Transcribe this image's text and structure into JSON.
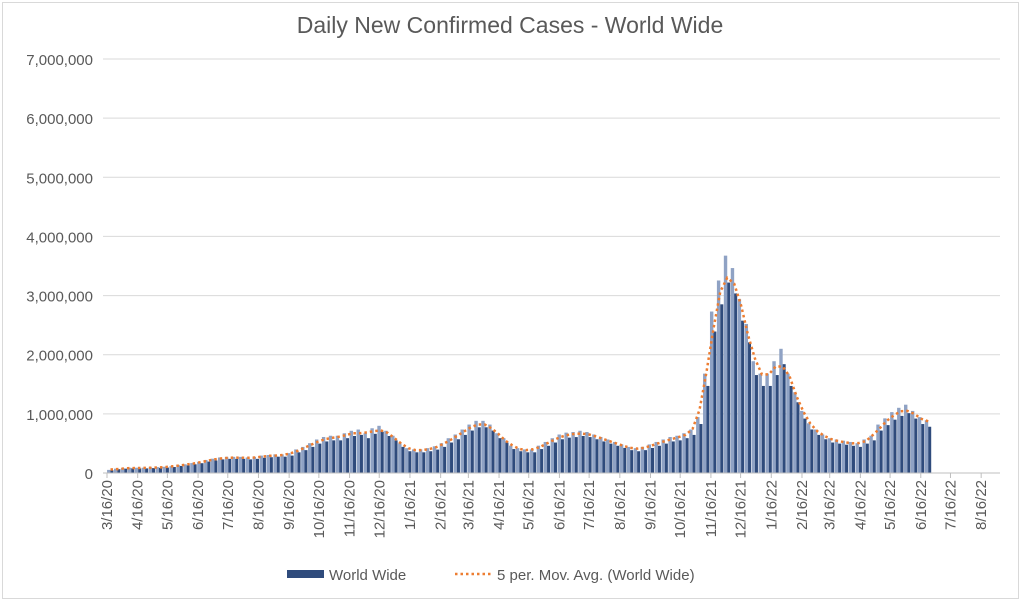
{
  "chart_data": {
    "type": "bar",
    "title": "Daily New Confirmed Cases - World Wide",
    "xlabel": "",
    "ylabel": "",
    "ylim": [
      0,
      7000000
    ],
    "y_ticks": [
      "0",
      "1,000,000",
      "2,000,000",
      "3,000,000",
      "4,000,000",
      "5,000,000",
      "6,000,000",
      "7,000,000"
    ],
    "y_tick_values": [
      0,
      1000000,
      2000000,
      3000000,
      4000000,
      5000000,
      6000000,
      7000000
    ],
    "x_tick_labels": [
      "3/16/20",
      "4/16/20",
      "5/16/20",
      "6/16/20",
      "7/16/20",
      "8/16/20",
      "9/16/20",
      "10/16/20",
      "11/16/20",
      "12/16/20",
      "1/16/21",
      "2/16/21",
      "3/16/21",
      "4/16/21",
      "5/16/21",
      "6/16/21",
      "7/16/21",
      "8/16/21",
      "9/16/21",
      "10/16/21",
      "11/16/21",
      "12/16/21",
      "1/16/22",
      "2/16/22",
      "3/16/22",
      "4/16/22",
      "5/16/22",
      "6/16/22",
      "7/16/22",
      "8/16/22"
    ],
    "x_tick_day_offsets": [
      0,
      31,
      61,
      92,
      122,
      153,
      184,
      214,
      245,
      275,
      306,
      337,
      365,
      396,
      426,
      457,
      487,
      518,
      549,
      579,
      610,
      640,
      671,
      702,
      730,
      761,
      791,
      822,
      852,
      883
    ],
    "grid": true,
    "legend_position": "bottom",
    "x_start": "3/16/20",
    "x_resolution": "weekly (approximate)",
    "series": [
      {
        "name": "World Wide",
        "type": "bar",
        "color": "#2f4b7c",
        "values": [
          50000,
          70000,
          80000,
          85000,
          85000,
          85000,
          90000,
          95000,
          100000,
          110000,
          130000,
          140000,
          160000,
          180000,
          210000,
          230000,
          250000,
          260000,
          260000,
          260000,
          250000,
          260000,
          280000,
          290000,
          300000,
          300000,
          320000,
          380000,
          420000,
          480000,
          540000,
          580000,
          600000,
          600000,
          640000,
          680000,
          700000,
          640000,
          720000,
          760000,
          680000,
          600000,
          480000,
          400000,
          380000,
          380000,
          400000,
          430000,
          480000,
          560000,
          620000,
          700000,
          780000,
          840000,
          840000,
          780000,
          640000,
          560000,
          440000,
          400000,
          380000,
          380000,
          440000,
          500000,
          560000,
          620000,
          650000,
          660000,
          680000,
          660000,
          620000,
          580000,
          540000,
          500000,
          460000,
          420000,
          400000,
          420000,
          460000,
          500000,
          540000,
          580000,
          600000,
          640000,
          700000,
          900000,
          1600000,
          2600000,
          3100000,
          3500000,
          3300000,
          2800000,
          2400000,
          1800000,
          1600000,
          1600000,
          1800000,
          2000000,
          1600000,
          1300000,
          1000000,
          800000,
          700000,
          620000,
          560000,
          540000,
          520000,
          500000,
          480000,
          540000,
          600000,
          780000,
          880000,
          980000,
          1050000,
          1100000,
          1000000,
          900000,
          850000
        ]
      },
      {
        "name": "5 per. Mov. Avg. (World Wide)",
        "type": "line",
        "color": "#ed7d31",
        "style": "dotted"
      }
    ]
  }
}
